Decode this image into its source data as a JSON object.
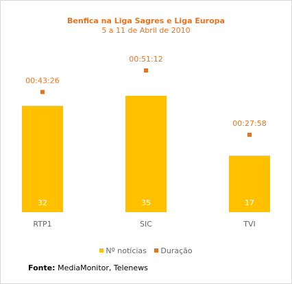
{
  "chart_data": {
    "type": "bar",
    "title": "Benfica na Liga Sagres e Liga Europa",
    "subtitle": "5 a 11 de Abril de 2010",
    "categories": [
      "RTP1",
      "SIC",
      "TVI"
    ],
    "series": [
      {
        "name": "Nº notícias",
        "values": [
          32,
          35,
          17
        ],
        "color": "#ffc000"
      },
      {
        "name": "Duração",
        "values": [
          "00:43:26",
          "00:51:12",
          "00:27:58"
        ],
        "color": "#e8731f"
      }
    ],
    "legend_position": "bottom",
    "grid": false
  },
  "source": {
    "label": "Fonte:",
    "text": " MediaMonitor, Telenews"
  },
  "colors": {
    "bar": "#ffc000",
    "marker": "#e8731f",
    "text": "#666666"
  }
}
